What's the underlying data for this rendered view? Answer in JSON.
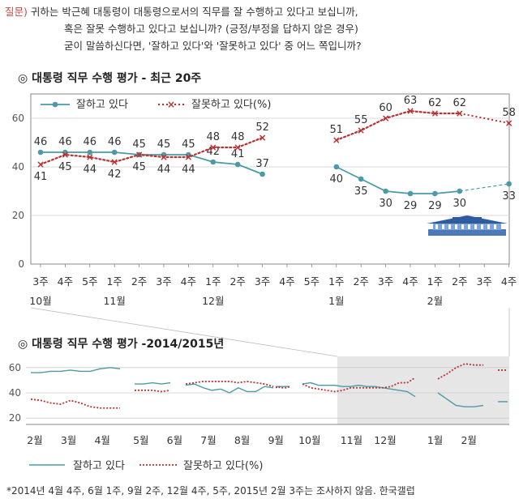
{
  "question": {
    "label": "질문)",
    "line1": "귀하는 박근혜 대통령이 대통령으로서의 직무를 잘 수행하고 있다고 보십니까,",
    "line2": "혹은 잘못 수행하고 있다고 보십니까? (긍정/부정을 답하지 않은 경우)",
    "line3": "굳이 말씀하신다면, '잘하고 있다'와 '잘못하고 있다' 중 어느 쪽입니까?"
  },
  "footnote": "*2014년 4월 4주, 6월 1주, 9월 2주, 12월 4주, 5주, 2015년 2월 3주는 조사하지 않음. 한국갤럽",
  "colors": {
    "positive": "#4a9ba6",
    "negative": "#b83232",
    "grid": "#cccccc",
    "shade": "#e6e6e6"
  },
  "icon": "blue-house-icon",
  "chart_data": [
    {
      "type": "line",
      "title": "◎ 대통령 직무 수행 평가 - 최근 20주",
      "xlabel": "",
      "ylabel": "",
      "ylim": [
        0,
        70
      ],
      "yticks": [
        0,
        20,
        40,
        60
      ],
      "grid": true,
      "legend": "top-left",
      "categories": [
        "3주",
        "4주",
        "5주",
        "1주",
        "2주",
        "3주",
        "4주",
        "1주",
        "2주",
        "3주",
        "4주",
        "5주",
        "1주",
        "2주",
        "3주",
        "4주",
        "1주",
        "2주",
        "3주",
        "4주"
      ],
      "month_labels": [
        {
          "index": 0,
          "label": "10월"
        },
        {
          "index": 3,
          "label": "11월"
        },
        {
          "index": 7,
          "label": "12월"
        },
        {
          "index": 12,
          "label": "1월"
        },
        {
          "index": 16,
          "label": "2월"
        }
      ],
      "series": [
        {
          "name": "잘하고 있다",
          "style": "solid",
          "values": [
            46,
            46,
            46,
            46,
            45,
            45,
            45,
            42,
            41,
            37,
            null,
            null,
            40,
            35,
            30,
            29,
            29,
            30,
            null,
            33
          ]
        },
        {
          "name": "잘못하고 있다(%)",
          "style": "dotted",
          "values": [
            41,
            45,
            44,
            42,
            45,
            44,
            44,
            48,
            48,
            52,
            null,
            null,
            51,
            55,
            60,
            63,
            62,
            62,
            null,
            58
          ]
        }
      ]
    },
    {
      "type": "line",
      "title": "◎ 대통령 직무 수행 평가 -2014/2015년",
      "xlabel": "",
      "ylabel": "",
      "ylim": [
        15,
        65
      ],
      "yticks": [
        20,
        40,
        60
      ],
      "grid": true,
      "legend": "bottom",
      "x_months": [
        "2월",
        "3월",
        "4월",
        "5월",
        "6월",
        "7월",
        "8월",
        "9월",
        "10월",
        "11월",
        "12월",
        "1월",
        "2월"
      ],
      "segments": [
        {
          "positive": [
            56,
            56,
            57,
            57,
            58,
            57,
            57,
            59,
            60,
            59
          ],
          "negative": [
            35,
            34,
            32,
            31,
            34,
            32,
            29,
            28,
            28,
            28
          ]
        },
        {
          "positive": [
            47,
            47,
            48,
            47,
            48
          ],
          "negative": [
            42,
            42,
            42,
            41,
            42
          ]
        },
        {
          "positive": [
            46,
            47,
            44,
            42,
            43,
            40,
            44,
            41,
            41,
            45,
            44
          ],
          "negative": [
            47,
            48,
            49,
            49,
            49,
            49,
            48,
            49,
            48,
            47,
            45
          ]
        },
        {
          "positive": [
            45,
            45,
            45,
            45,
            45,
            45,
            45
          ],
          "negative": [
            44,
            45,
            44,
            44,
            44,
            44,
            45
          ]
        },
        {
          "positive": [
            47,
            48,
            46,
            46,
            46,
            45,
            45,
            46,
            45,
            45,
            44,
            43,
            42,
            41,
            37
          ],
          "negative": [
            47,
            44,
            43,
            42,
            41,
            42,
            44,
            44,
            44,
            44,
            44,
            45,
            48,
            48,
            52
          ]
        },
        {
          "positive": [
            40,
            35,
            30,
            29,
            29,
            30
          ],
          "negative": [
            51,
            55,
            60,
            63,
            62,
            62
          ]
        },
        {
          "positive": [
            33
          ],
          "negative": [
            58
          ]
        }
      ],
      "legend_positive": "잘하고 있다",
      "legend_negative": "잘못하고 있다(%)"
    }
  ]
}
